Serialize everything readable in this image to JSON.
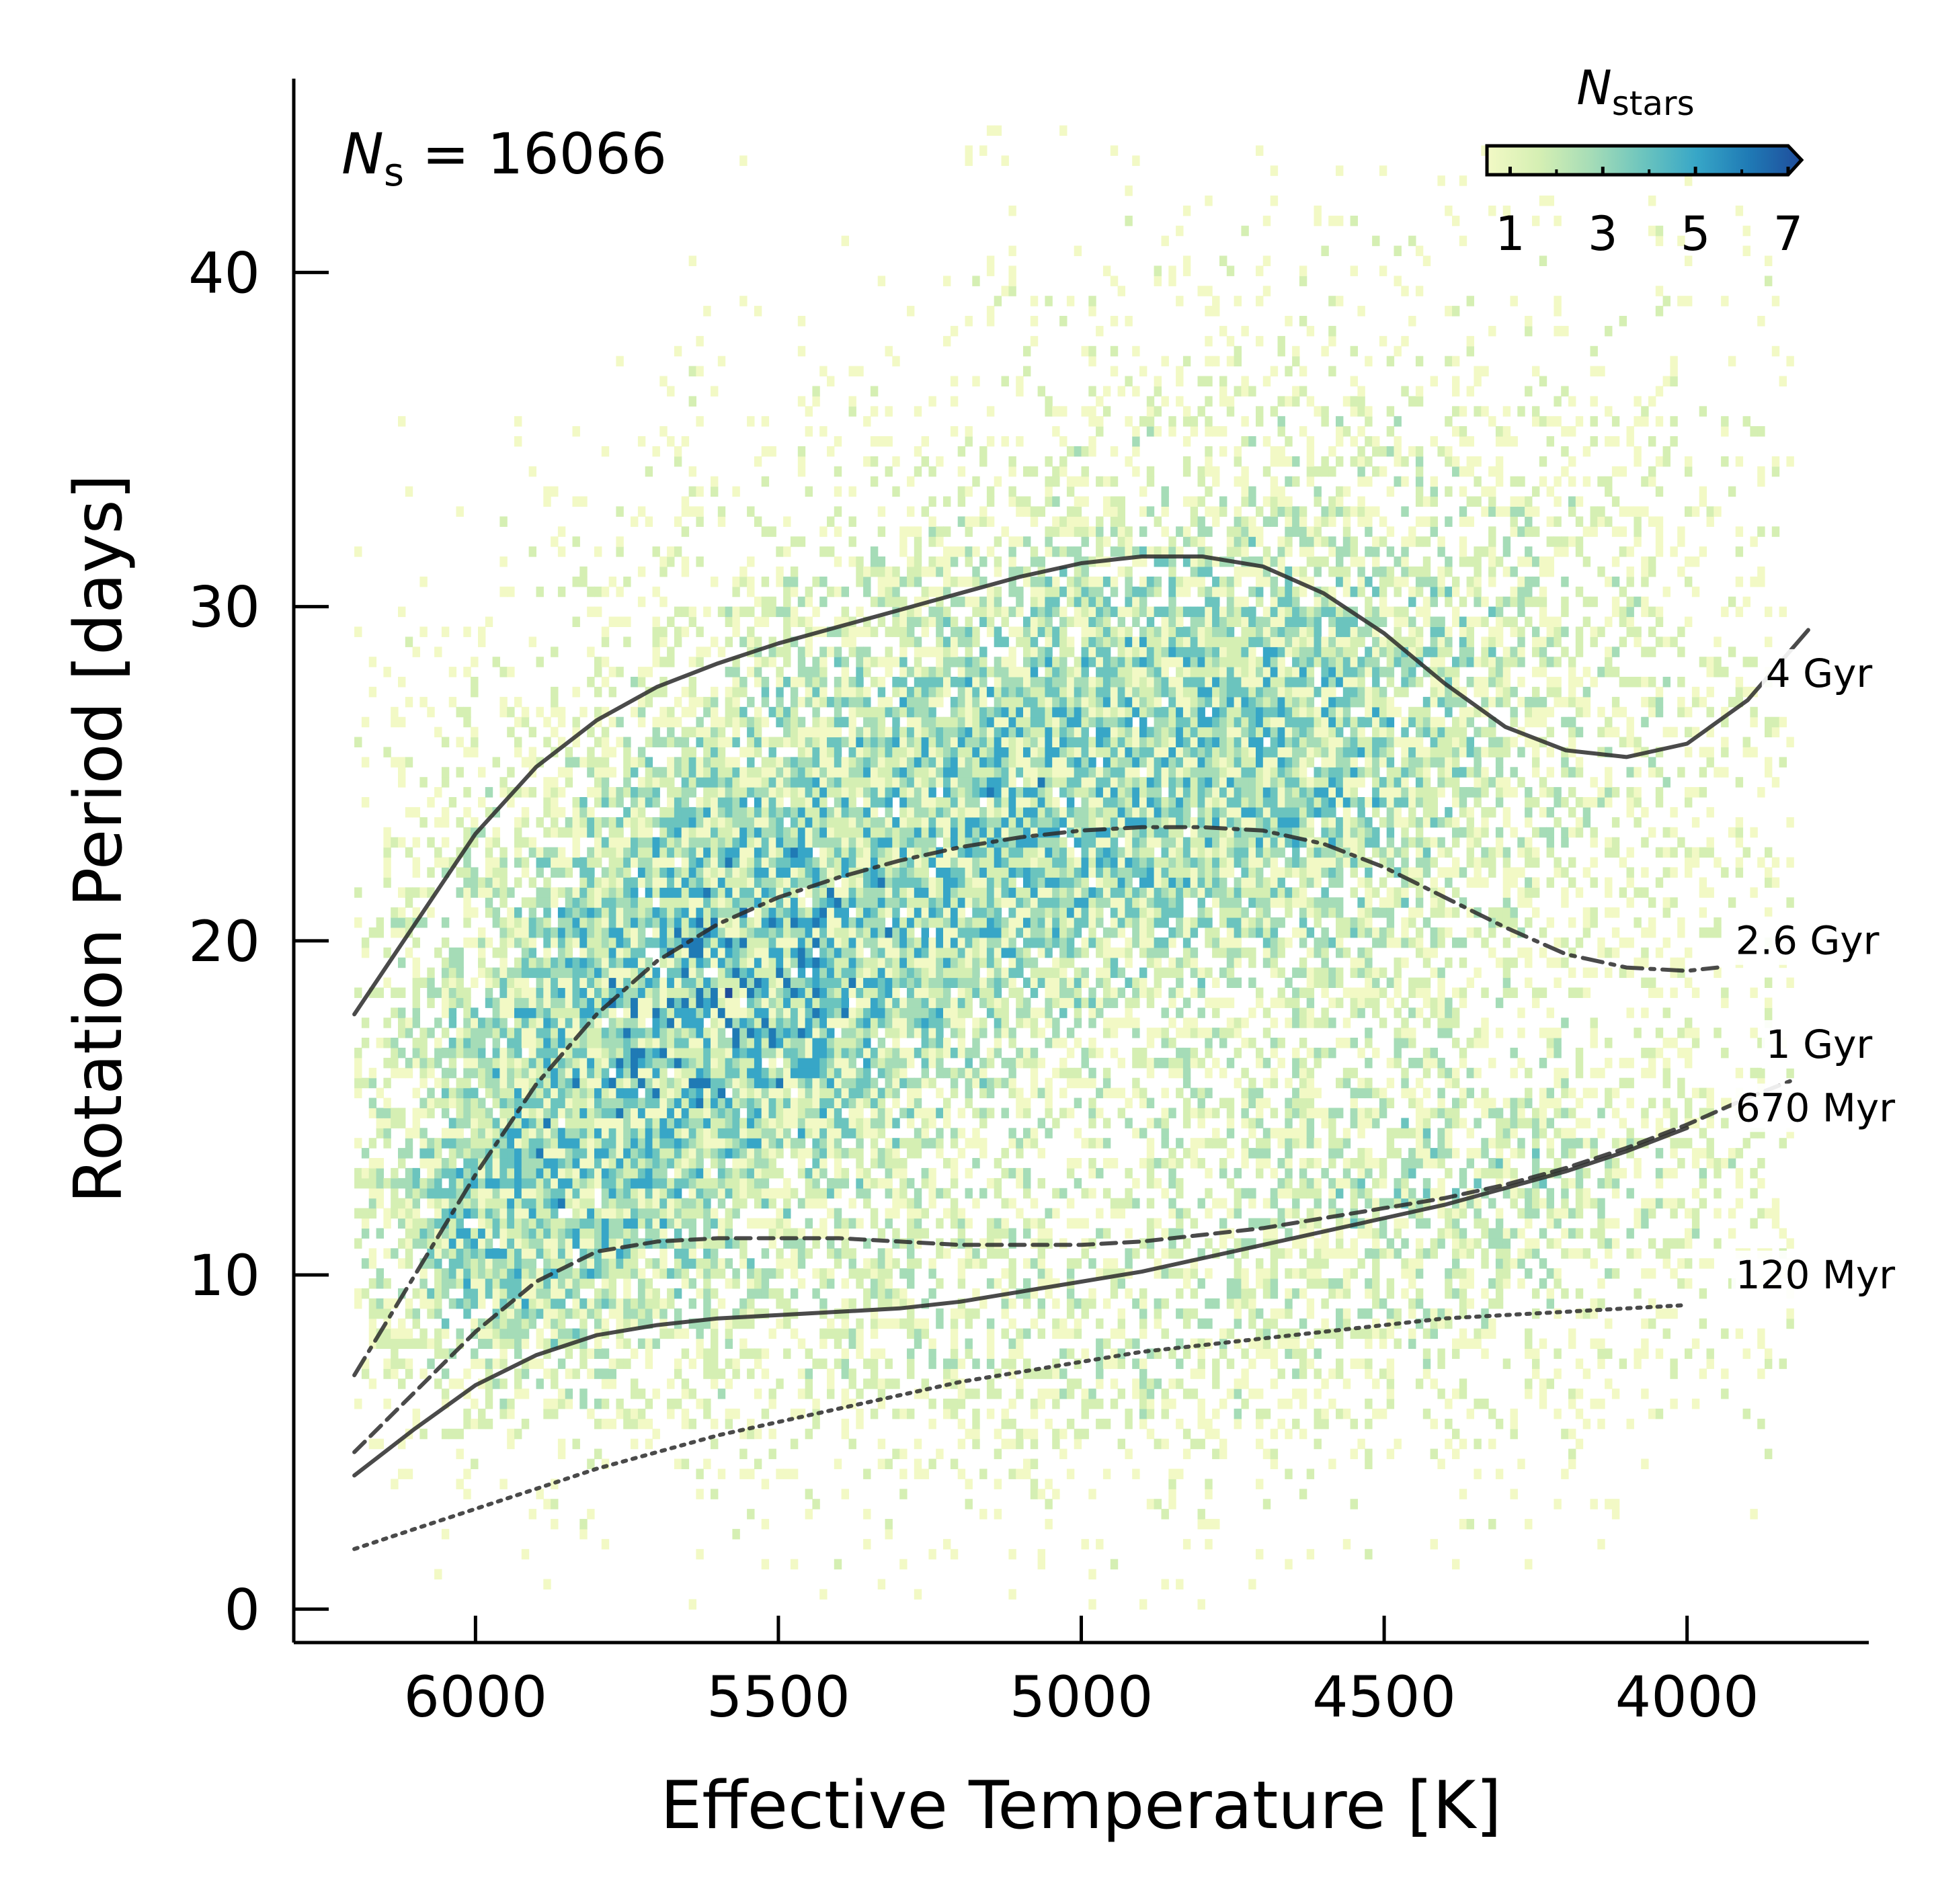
{
  "chart_data": {
    "type": "heatmap",
    "title": "",
    "annotation": {
      "prefix": "N",
      "subscript": "s",
      "rest": " = 16066"
    },
    "xlabel": "Effective Temperature [K]",
    "ylabel": "Rotation Period [days]",
    "x_axis_inverted": true,
    "xlim": [
      6300,
      3700
    ],
    "ylim": [
      -1,
      45.8
    ],
    "xticks": [
      6000,
      5500,
      5000,
      4500,
      4000
    ],
    "xtick_labels": [
      "6000",
      "5500",
      "5000",
      "4500",
      "4000"
    ],
    "yticks": [
      0,
      10,
      20,
      30,
      40
    ],
    "ytick_labels": [
      "0",
      "10",
      "20",
      "30",
      "40"
    ],
    "grid": false,
    "colorbar": {
      "label_base": "N",
      "label_sub": "stars",
      "ticks": [
        "1",
        "3",
        "5",
        "7"
      ],
      "min": 1,
      "max": 7,
      "extend": "max",
      "placement": "top-right",
      "colors": [
        "#f2f9c5",
        "#d5efb3",
        "#a5dcb7",
        "#6bc4be",
        "#37a6c7",
        "#1f7ab5",
        "#1f4c9b"
      ]
    },
    "density_model": {
      "bin_width_K": 12,
      "bin_height_days": 0.3,
      "teff_range": [
        6200,
        3830
      ],
      "period_range": [
        0,
        44.5
      ],
      "clusters": [
        {
          "teff": 5650,
          "period": 17.5,
          "sigma_teff": 300,
          "sigma_period": 4.5,
          "weight": 1.0
        },
        {
          "teff": 5950,
          "period": 11.0,
          "sigma_teff": 180,
          "sigma_period": 3.0,
          "weight": 0.7
        },
        {
          "teff": 5150,
          "period": 24.0,
          "sigma_teff": 450,
          "sigma_period": 5.0,
          "weight": 0.65
        },
        {
          "teff": 4600,
          "period": 27.0,
          "sigma_teff": 450,
          "sigma_period": 6.5,
          "weight": 0.55
        },
        {
          "teff": 4350,
          "period": 13.0,
          "sigma_teff": 350,
          "sigma_period": 2.5,
          "weight": 0.45
        },
        {
          "teff": 5000,
          "period": 8.0,
          "sigma_teff": 600,
          "sigma_period": 3.0,
          "weight": 0.35
        }
      ]
    },
    "series": [
      {
        "name": "4 Gyr",
        "style": "solid",
        "x": [
          6200,
          6100,
          6000,
          5900,
          5800,
          5700,
          5600,
          5500,
          5400,
          5300,
          5200,
          5100,
          5000,
          4900,
          4800,
          4700,
          4600,
          4500,
          4400,
          4300,
          4200,
          4100,
          4000,
          3900,
          3800
        ],
        "y": [
          17.8,
          20.5,
          23.2,
          25.2,
          26.6,
          27.6,
          28.3,
          28.9,
          29.4,
          29.9,
          30.4,
          30.9,
          31.3,
          31.5,
          31.5,
          31.2,
          30.4,
          29.2,
          27.7,
          26.4,
          25.7,
          25.5,
          25.9,
          27.2,
          29.3
        ]
      },
      {
        "name": "2.6 Gyr",
        "style": "dashdot",
        "x": [
          6200,
          6100,
          6000,
          5900,
          5800,
          5700,
          5600,
          5500,
          5400,
          5300,
          5200,
          5100,
          5000,
          4900,
          4800,
          4700,
          4600,
          4500,
          4400,
          4300,
          4200,
          4100,
          4000,
          3950
        ],
        "y": [
          7.0,
          10.0,
          13.0,
          15.7,
          17.8,
          19.4,
          20.5,
          21.3,
          21.9,
          22.4,
          22.8,
          23.1,
          23.3,
          23.4,
          23.4,
          23.3,
          22.9,
          22.2,
          21.3,
          20.4,
          19.6,
          19.2,
          19.1,
          19.2
        ]
      },
      {
        "name": "1 Gyr",
        "style": "dashed",
        "x": [
          6200,
          6100,
          6000,
          5900,
          5800,
          5700,
          5600,
          5500,
          5400,
          5300,
          5200,
          5100,
          5000,
          4900,
          4800,
          4700,
          4600,
          4500,
          4400,
          4300,
          4200,
          4100,
          4000,
          3900,
          3830
        ],
        "y": [
          4.7,
          6.5,
          8.3,
          9.8,
          10.7,
          11.0,
          11.1,
          11.1,
          11.1,
          11.0,
          10.9,
          10.9,
          10.9,
          11.0,
          11.2,
          11.4,
          11.7,
          12.0,
          12.3,
          12.7,
          13.2,
          13.8,
          14.5,
          15.3,
          15.8
        ]
      },
      {
        "name": "670 Myr",
        "style": "solid",
        "x": [
          6200,
          6100,
          6000,
          5900,
          5800,
          5700,
          5600,
          5500,
          5400,
          5300,
          5200,
          5100,
          5000,
          4900,
          4800,
          4700,
          4600,
          4500,
          4400,
          4300,
          4200,
          4100,
          4000
        ],
        "y": [
          4.0,
          5.4,
          6.7,
          7.6,
          8.2,
          8.5,
          8.7,
          8.8,
          8.9,
          9.0,
          9.2,
          9.5,
          9.8,
          10.1,
          10.5,
          10.9,
          11.3,
          11.7,
          12.1,
          12.6,
          13.1,
          13.7,
          14.4
        ]
      },
      {
        "name": "120 Myr",
        "style": "dotted",
        "x": [
          6200,
          6100,
          6000,
          5900,
          5800,
          5700,
          5600,
          5500,
          5400,
          5300,
          5200,
          5100,
          5000,
          4900,
          4800,
          4700,
          4600,
          4500,
          4400,
          4300,
          4200,
          4100,
          4000
        ],
        "y": [
          1.8,
          2.4,
          3.0,
          3.6,
          4.2,
          4.7,
          5.2,
          5.6,
          6.0,
          6.4,
          6.8,
          7.1,
          7.4,
          7.7,
          7.9,
          8.1,
          8.3,
          8.5,
          8.7,
          8.8,
          8.9,
          9.0,
          9.1
        ]
      }
    ],
    "curve_labels": [
      {
        "text": "4 Gyr",
        "x": 3870,
        "y": 27.6
      },
      {
        "text": "2.6 Gyr",
        "x": 3920,
        "y": 19.6
      },
      {
        "text": "1 Gyr",
        "x": 3870,
        "y": 16.5
      },
      {
        "text": "670 Myr",
        "x": 3920,
        "y": 14.6
      },
      {
        "text": "120 Myr",
        "x": 3920,
        "y": 9.6
      }
    ]
  }
}
